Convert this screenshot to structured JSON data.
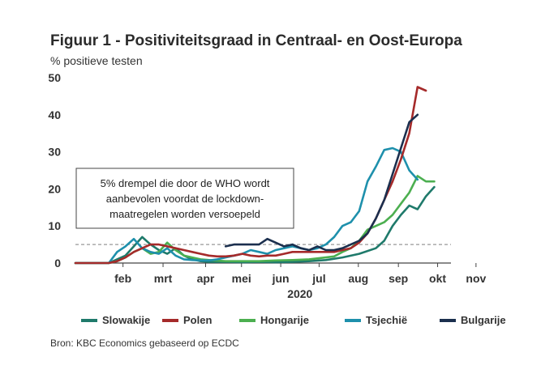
{
  "figure": {
    "title": "Figuur 1 - Positiviteitsgraad in Centraal- en Oost-Europa",
    "unit_label": "% positieve testen",
    "source": "Bron: KBC Economics gebaseerd op ECDC"
  },
  "chart_data": {
    "type": "line",
    "title": "Figuur 1 - Positiviteitsgraad in Centraal- en Oost-Europa",
    "ylabel": "% positieve testen",
    "xlabel": "2020",
    "x_unit": "weeks since 20 Jan 2020",
    "xlim": [
      0,
      45
    ],
    "ylim": [
      0,
      50
    ],
    "yticks": [
      0,
      10,
      20,
      30,
      40,
      50
    ],
    "xtick_labels": [
      {
        "label": "feb",
        "x": 5.7
      },
      {
        "label": "mrt",
        "x": 10.5
      },
      {
        "label": "apr",
        "x": 15.6
      },
      {
        "label": "mei",
        "x": 19.9
      },
      {
        "label": "jun",
        "x": 24.6
      },
      {
        "label": "jul",
        "x": 29.2
      },
      {
        "label": "aug",
        "x": 33.9
      },
      {
        "label": "sep",
        "x": 38.7
      },
      {
        "label": "okt",
        "x": 43.4
      },
      {
        "label": "nov",
        "x": 48.0
      }
    ],
    "grid": false,
    "threshold": {
      "value": 5,
      "style": "dashed",
      "color": "#999999"
    },
    "annotation": "5% drempel die door de WHO wordt aanbevolen voordat de lockdown-maatregelen worden versoepeld",
    "legend_position": "bottom",
    "series": [
      {
        "name": "Slowakije",
        "color": "#1f7a6b",
        "points": [
          [
            0,
            0
          ],
          [
            4,
            0
          ],
          [
            5,
            1
          ],
          [
            6,
            2
          ],
          [
            7,
            4.5
          ],
          [
            8,
            7
          ],
          [
            9,
            5
          ],
          [
            10,
            3.5
          ],
          [
            11,
            2.5
          ],
          [
            12,
            4
          ],
          [
            13,
            2
          ],
          [
            14,
            1
          ],
          [
            15,
            0.5
          ],
          [
            16,
            0.3
          ],
          [
            18,
            0.3
          ],
          [
            20,
            0.2
          ],
          [
            22,
            0.3
          ],
          [
            24,
            0.2
          ],
          [
            26,
            0.3
          ],
          [
            28,
            0.5
          ],
          [
            30,
            0.8
          ],
          [
            32,
            1.5
          ],
          [
            34,
            2.5
          ],
          [
            36,
            4
          ],
          [
            37,
            6
          ],
          [
            38,
            10
          ],
          [
            39,
            13
          ],
          [
            40,
            15.5
          ],
          [
            41,
            14.5
          ],
          [
            42,
            18
          ],
          [
            43,
            20.5
          ]
        ]
      },
      {
        "name": "Polen",
        "color": "#a52a2a",
        "points": [
          [
            0,
            0
          ],
          [
            4,
            0
          ],
          [
            5,
            0.5
          ],
          [
            6,
            1.5
          ],
          [
            7,
            3
          ],
          [
            8,
            4
          ],
          [
            9,
            5
          ],
          [
            10,
            5
          ],
          [
            11,
            4.5
          ],
          [
            12,
            4
          ],
          [
            13,
            3.5
          ],
          [
            14,
            3
          ],
          [
            15,
            2.5
          ],
          [
            16,
            2
          ],
          [
            17,
            1.8
          ],
          [
            18,
            1.8
          ],
          [
            19,
            2
          ],
          [
            20,
            2.5
          ],
          [
            21,
            2
          ],
          [
            22,
            1.8
          ],
          [
            23,
            2
          ],
          [
            24,
            2
          ],
          [
            25,
            2.5
          ],
          [
            26,
            3
          ],
          [
            27,
            3
          ],
          [
            28,
            3
          ],
          [
            29,
            3
          ],
          [
            30,
            3
          ],
          [
            31,
            3
          ],
          [
            32,
            3.5
          ],
          [
            33,
            4
          ],
          [
            34,
            5.5
          ],
          [
            35,
            8
          ],
          [
            36,
            12
          ],
          [
            37,
            17
          ],
          [
            38,
            22
          ],
          [
            39,
            28
          ],
          [
            40,
            35
          ],
          [
            41,
            47.5
          ],
          [
            42,
            46.5
          ]
        ]
      },
      {
        "name": "Hongarije",
        "color": "#4caf50",
        "points": [
          [
            0,
            0
          ],
          [
            4,
            0
          ],
          [
            5,
            0.5
          ],
          [
            6,
            1.5
          ],
          [
            7,
            3
          ],
          [
            8,
            4
          ],
          [
            9,
            2.5
          ],
          [
            10,
            3
          ],
          [
            11,
            5.5
          ],
          [
            12,
            3.5
          ],
          [
            13,
            2
          ],
          [
            14,
            1.5
          ],
          [
            15,
            1
          ],
          [
            16,
            0.8
          ],
          [
            18,
            0.5
          ],
          [
            20,
            0.5
          ],
          [
            22,
            0.5
          ],
          [
            24,
            0.7
          ],
          [
            26,
            0.8
          ],
          [
            28,
            1
          ],
          [
            30,
            1.5
          ],
          [
            31,
            1.8
          ],
          [
            32,
            3
          ],
          [
            33,
            4
          ],
          [
            34,
            6
          ],
          [
            35,
            9
          ],
          [
            36,
            10
          ],
          [
            37,
            11
          ],
          [
            38,
            13
          ],
          [
            39,
            16
          ],
          [
            40,
            19
          ],
          [
            41,
            23.5
          ],
          [
            42,
            22
          ],
          [
            43,
            22
          ]
        ]
      },
      {
        "name": "Tsjechië",
        "color": "#1e90ac",
        "points": [
          [
            0,
            0
          ],
          [
            4,
            0
          ],
          [
            5,
            3
          ],
          [
            6,
            4.5
          ],
          [
            7,
            6.5
          ],
          [
            8,
            4
          ],
          [
            9,
            3
          ],
          [
            10,
            2.5
          ],
          [
            11,
            4
          ],
          [
            12,
            2
          ],
          [
            13,
            1
          ],
          [
            14,
            0.8
          ],
          [
            15,
            0.7
          ],
          [
            16,
            0.7
          ],
          [
            17,
            1
          ],
          [
            18,
            1.5
          ],
          [
            19,
            2
          ],
          [
            20,
            2.5
          ],
          [
            21,
            3.5
          ],
          [
            22,
            3
          ],
          [
            23,
            2.5
          ],
          [
            24,
            3.5
          ],
          [
            25,
            4
          ],
          [
            26,
            4.5
          ],
          [
            27,
            4
          ],
          [
            28,
            3.5
          ],
          [
            29,
            4
          ],
          [
            30,
            5
          ],
          [
            31,
            7
          ],
          [
            32,
            10
          ],
          [
            33,
            11
          ],
          [
            34,
            14
          ],
          [
            35,
            22
          ],
          [
            36,
            26
          ],
          [
            37,
            30.5
          ],
          [
            38,
            31
          ],
          [
            39,
            30
          ],
          [
            40,
            25
          ],
          [
            41,
            22.5
          ]
        ]
      },
      {
        "name": "Bulgarije",
        "color": "#1b2f4e",
        "points": [
          [
            18,
            4.5
          ],
          [
            19,
            5
          ],
          [
            20,
            5
          ],
          [
            21,
            5
          ],
          [
            22,
            5
          ],
          [
            23,
            6.5
          ],
          [
            24,
            5.5
          ],
          [
            25,
            4.5
          ],
          [
            26,
            5
          ],
          [
            27,
            4
          ],
          [
            28,
            3.5
          ],
          [
            29,
            4.5
          ],
          [
            30,
            3.5
          ],
          [
            31,
            3.5
          ],
          [
            32,
            4
          ],
          [
            33,
            5
          ],
          [
            34,
            6
          ],
          [
            35,
            8
          ],
          [
            36,
            12
          ],
          [
            37,
            17
          ],
          [
            38,
            24
          ],
          [
            39,
            31
          ],
          [
            40,
            38
          ],
          [
            41,
            40
          ]
        ]
      }
    ]
  }
}
